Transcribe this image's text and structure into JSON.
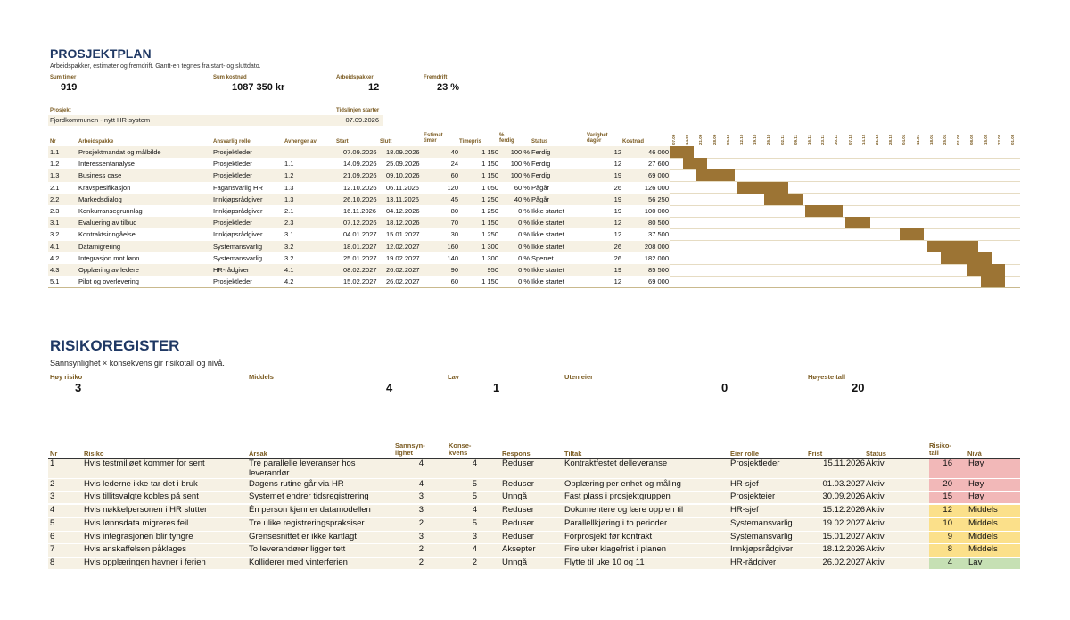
{
  "plan": {
    "title": "PROSJEKTPLAN",
    "subtitle": "Arbeidspakker, estimater og fremdrift. Gantt-en tegnes fra start- og sluttdato.",
    "kpis": [
      {
        "label": "Sum timer",
        "value": "919"
      },
      {
        "label": "Sum kostnad",
        "value": "1087 350 kr"
      },
      {
        "label": "Arbeidspakker",
        "value": "12"
      },
      {
        "label": "Fremdrift",
        "value": "23 %"
      }
    ],
    "project_label": "Prosjekt",
    "project_value": "Fjordkommunen - nytt HR-system",
    "timeline_label": "Tidslinjen starter",
    "timeline_value": "07.09.2026",
    "headers": {
      "nr": "Nr",
      "pakke": "Arbeidspakke",
      "rolle": "Ansvarlig rolle",
      "avh": "Avhenger av",
      "start": "Start",
      "slutt": "Slutt",
      "timer": "Estimat timer",
      "timepris": "Timepris",
      "ferdig": "% ferdig",
      "status": "Status",
      "varighet": "Varighet dager",
      "kostnad": "Kostnad"
    },
    "gantt_dates": [
      "07.09",
      "14.09",
      "21.09",
      "28.09",
      "05.10",
      "12.10",
      "19.10",
      "26.10",
      "02.11",
      "09.11",
      "16.11",
      "23.11",
      "30.11",
      "07.12",
      "14.12",
      "21.12",
      "28.12",
      "04.01",
      "11.01",
      "18.01",
      "25.01",
      "01.02",
      "08.02",
      "15.02",
      "22.02",
      "01.03"
    ],
    "rows": [
      {
        "nr": "1.1",
        "pakke": "Prosjektmandat og målbilde",
        "rolle": "Prosjektleder",
        "avh": "",
        "start": "07.09.2026",
        "slutt": "18.09.2026",
        "timer": "40",
        "timepris": "1 150",
        "ferdig": "100 %",
        "status": "Ferdig",
        "varighet": "12",
        "kostnad": "46 000",
        "g_start": 0,
        "g_days": 12
      },
      {
        "nr": "1.2",
        "pakke": "Interessentanalyse",
        "rolle": "Prosjektleder",
        "avh": "1.1",
        "start": "14.09.2026",
        "slutt": "25.09.2026",
        "timer": "24",
        "timepris": "1 150",
        "ferdig": "100 %",
        "status": "Ferdig",
        "varighet": "12",
        "kostnad": "27 600",
        "g_start": 7,
        "g_days": 12
      },
      {
        "nr": "1.3",
        "pakke": "Business case",
        "rolle": "Prosjektleder",
        "avh": "1.2",
        "start": "21.09.2026",
        "slutt": "09.10.2026",
        "timer": "60",
        "timepris": "1 150",
        "ferdig": "100 %",
        "status": "Ferdig",
        "varighet": "19",
        "kostnad": "69 000",
        "g_start": 14,
        "g_days": 19
      },
      {
        "nr": "2.1",
        "pakke": "Kravspesifikasjon",
        "rolle": "Fagansvarlig HR",
        "avh": "1.3",
        "start": "12.10.2026",
        "slutt": "06.11.2026",
        "timer": "120",
        "timepris": "1 050",
        "ferdig": "60 %",
        "status": "Pågår",
        "varighet": "26",
        "kostnad": "126 000",
        "g_start": 35,
        "g_days": 26
      },
      {
        "nr": "2.2",
        "pakke": "Markedsdialog",
        "rolle": "Innkjøpsrådgiver",
        "avh": "1.3",
        "start": "26.10.2026",
        "slutt": "13.11.2026",
        "timer": "45",
        "timepris": "1 250",
        "ferdig": "40 %",
        "status": "Pågår",
        "varighet": "19",
        "kostnad": "56 250",
        "g_start": 49,
        "g_days": 19
      },
      {
        "nr": "2.3",
        "pakke": "Konkurransegrunnlag",
        "rolle": "Innkjøpsrådgiver",
        "avh": "2.1",
        "start": "16.11.2026",
        "slutt": "04.12.2026",
        "timer": "80",
        "timepris": "1 250",
        "ferdig": "0 %",
        "status": "Ikke startet",
        "varighet": "19",
        "kostnad": "100 000",
        "g_start": 70,
        "g_days": 19
      },
      {
        "nr": "3.1",
        "pakke": "Evaluering av tilbud",
        "rolle": "Prosjektleder",
        "avh": "2.3",
        "start": "07.12.2026",
        "slutt": "18.12.2026",
        "timer": "70",
        "timepris": "1 150",
        "ferdig": "0 %",
        "status": "Ikke startet",
        "varighet": "12",
        "kostnad": "80 500",
        "g_start": 91,
        "g_days": 12
      },
      {
        "nr": "3.2",
        "pakke": "Kontraktsinngåelse",
        "rolle": "Innkjøpsrådgiver",
        "avh": "3.1",
        "start": "04.01.2027",
        "slutt": "15.01.2027",
        "timer": "30",
        "timepris": "1 250",
        "ferdig": "0 %",
        "status": "Ikke startet",
        "varighet": "12",
        "kostnad": "37 500",
        "g_start": 119,
        "g_days": 12
      },
      {
        "nr": "4.1",
        "pakke": "Datamigrering",
        "rolle": "Systemansvarlig",
        "avh": "3.2",
        "start": "18.01.2027",
        "slutt": "12.02.2027",
        "timer": "160",
        "timepris": "1 300",
        "ferdig": "0 %",
        "status": "Ikke startet",
        "varighet": "26",
        "kostnad": "208 000",
        "g_start": 133,
        "g_days": 26
      },
      {
        "nr": "4.2",
        "pakke": "Integrasjon mot lønn",
        "rolle": "Systemansvarlig",
        "avh": "3.2",
        "start": "25.01.2027",
        "slutt": "19.02.2027",
        "timer": "140",
        "timepris": "1 300",
        "ferdig": "0 %",
        "status": "Sperret",
        "varighet": "26",
        "kostnad": "182 000",
        "g_start": 140,
        "g_days": 26
      },
      {
        "nr": "4.3",
        "pakke": "Opplæring av ledere",
        "rolle": "HR-rådgiver",
        "avh": "4.1",
        "start": "08.02.2027",
        "slutt": "26.02.2027",
        "timer": "90",
        "timepris": "950",
        "ferdig": "0 %",
        "status": "Ikke startet",
        "varighet": "19",
        "kostnad": "85 500",
        "g_start": 154,
        "g_days": 19
      },
      {
        "nr": "5.1",
        "pakke": "Pilot og overlevering",
        "rolle": "Prosjektleder",
        "avh": "4.2",
        "start": "15.02.2027",
        "slutt": "26.02.2027",
        "timer": "60",
        "timepris": "1 150",
        "ferdig": "0 %",
        "status": "Ikke startet",
        "varighet": "12",
        "kostnad": "69 000",
        "g_start": 161,
        "g_days": 12
      }
    ]
  },
  "risk": {
    "title": "RISIKOREGISTER",
    "subtitle": "Sannsynlighet × konsekvens gir risikotall og nivå.",
    "kpis": [
      {
        "label": "Høy risiko",
        "value": "3"
      },
      {
        "label": "Middels",
        "value": "4"
      },
      {
        "label": "Lav",
        "value": "1"
      },
      {
        "label": "Uten eier",
        "value": "0"
      },
      {
        "label": "Høyeste tall",
        "value": "20"
      }
    ],
    "headers": {
      "nr": "Nr",
      "risiko": "Risiko",
      "arsak": "Årsak",
      "sann": "Sannsyn- lighet",
      "kons": "Konse- kvens",
      "respons": "Respons",
      "tiltak": "Tiltak",
      "eier": "Eier rolle",
      "frist": "Frist",
      "status": "Status",
      "tall": "Risiko- tall",
      "niva": "Nivå"
    },
    "colors": {
      "hoy": "#f2b8b8",
      "middels": "#fbe08a",
      "lav": "#c6e0b4"
    },
    "rows": [
      {
        "nr": "1",
        "risiko": "Hvis testmiljøet kommer for sent",
        "arsak": "Tre parallelle leveranser hos leverandør",
        "sann": "4",
        "kons": "4",
        "respons": "Reduser",
        "tiltak": "Kontraktfestet delleveranse",
        "eier": "Prosjektleder",
        "frist": "15.11.2026",
        "status": "Aktiv",
        "tall": "16",
        "niva": "Høy",
        "level": "hoy"
      },
      {
        "nr": "2",
        "risiko": "Hvis lederne ikke tar det i bruk",
        "arsak": "Dagens rutine går via HR",
        "sann": "4",
        "kons": "5",
        "respons": "Reduser",
        "tiltak": "Opplæring per enhet og måling",
        "eier": "HR-sjef",
        "frist": "01.03.2027",
        "status": "Aktiv",
        "tall": "20",
        "niva": "Høy",
        "level": "hoy"
      },
      {
        "nr": "3",
        "risiko": "Hvis tillitsvalgte kobles på sent",
        "arsak": "Systemet endrer tidsregistrering",
        "sann": "3",
        "kons": "5",
        "respons": "Unngå",
        "tiltak": "Fast plass i prosjektgruppen",
        "eier": "Prosjekteier",
        "frist": "30.09.2026",
        "status": "Aktiv",
        "tall": "15",
        "niva": "Høy",
        "level": "hoy"
      },
      {
        "nr": "4",
        "risiko": "Hvis nøkkelpersonen i HR slutter",
        "arsak": "Én person kjenner datamodellen",
        "sann": "3",
        "kons": "4",
        "respons": "Reduser",
        "tiltak": "Dokumentere og lære opp en til",
        "eier": "HR-sjef",
        "frist": "15.12.2026",
        "status": "Aktiv",
        "tall": "12",
        "niva": "Middels",
        "level": "middels"
      },
      {
        "nr": "5",
        "risiko": "Hvis lønnsdata migreres feil",
        "arsak": "Tre ulike registreringspraksiser",
        "sann": "2",
        "kons": "5",
        "respons": "Reduser",
        "tiltak": "Parallellkjøring i to perioder",
        "eier": "Systemansvarlig",
        "frist": "19.02.2027",
        "status": "Aktiv",
        "tall": "10",
        "niva": "Middels",
        "level": "middels"
      },
      {
        "nr": "6",
        "risiko": "Hvis integrasjonen blir tyngre",
        "arsak": "Grensesnittet er ikke kartlagt",
        "sann": "3",
        "kons": "3",
        "respons": "Reduser",
        "tiltak": "Forprosjekt før kontrakt",
        "eier": "Systemansvarlig",
        "frist": "15.01.2027",
        "status": "Aktiv",
        "tall": "9",
        "niva": "Middels",
        "level": "middels"
      },
      {
        "nr": "7",
        "risiko": "Hvis anskaffelsen påklages",
        "arsak": "To leverandører ligger tett",
        "sann": "2",
        "kons": "4",
        "respons": "Aksepter",
        "tiltak": "Fire uker klagefrist i planen",
        "eier": "Innkjøpsrådgiver",
        "frist": "18.12.2026",
        "status": "Aktiv",
        "tall": "8",
        "niva": "Middels",
        "level": "middels"
      },
      {
        "nr": "8",
        "risiko": "Hvis opplæringen havner i ferien",
        "arsak": "Kolliderer med vinterferien",
        "sann": "2",
        "kons": "2",
        "respons": "Unngå",
        "tiltak": "Flytte til uke 10 og 11",
        "eier": "HR-rådgiver",
        "frist": "26.02.2027",
        "status": "Aktiv",
        "tall": "4",
        "niva": "Lav",
        "level": "lav"
      }
    ]
  }
}
